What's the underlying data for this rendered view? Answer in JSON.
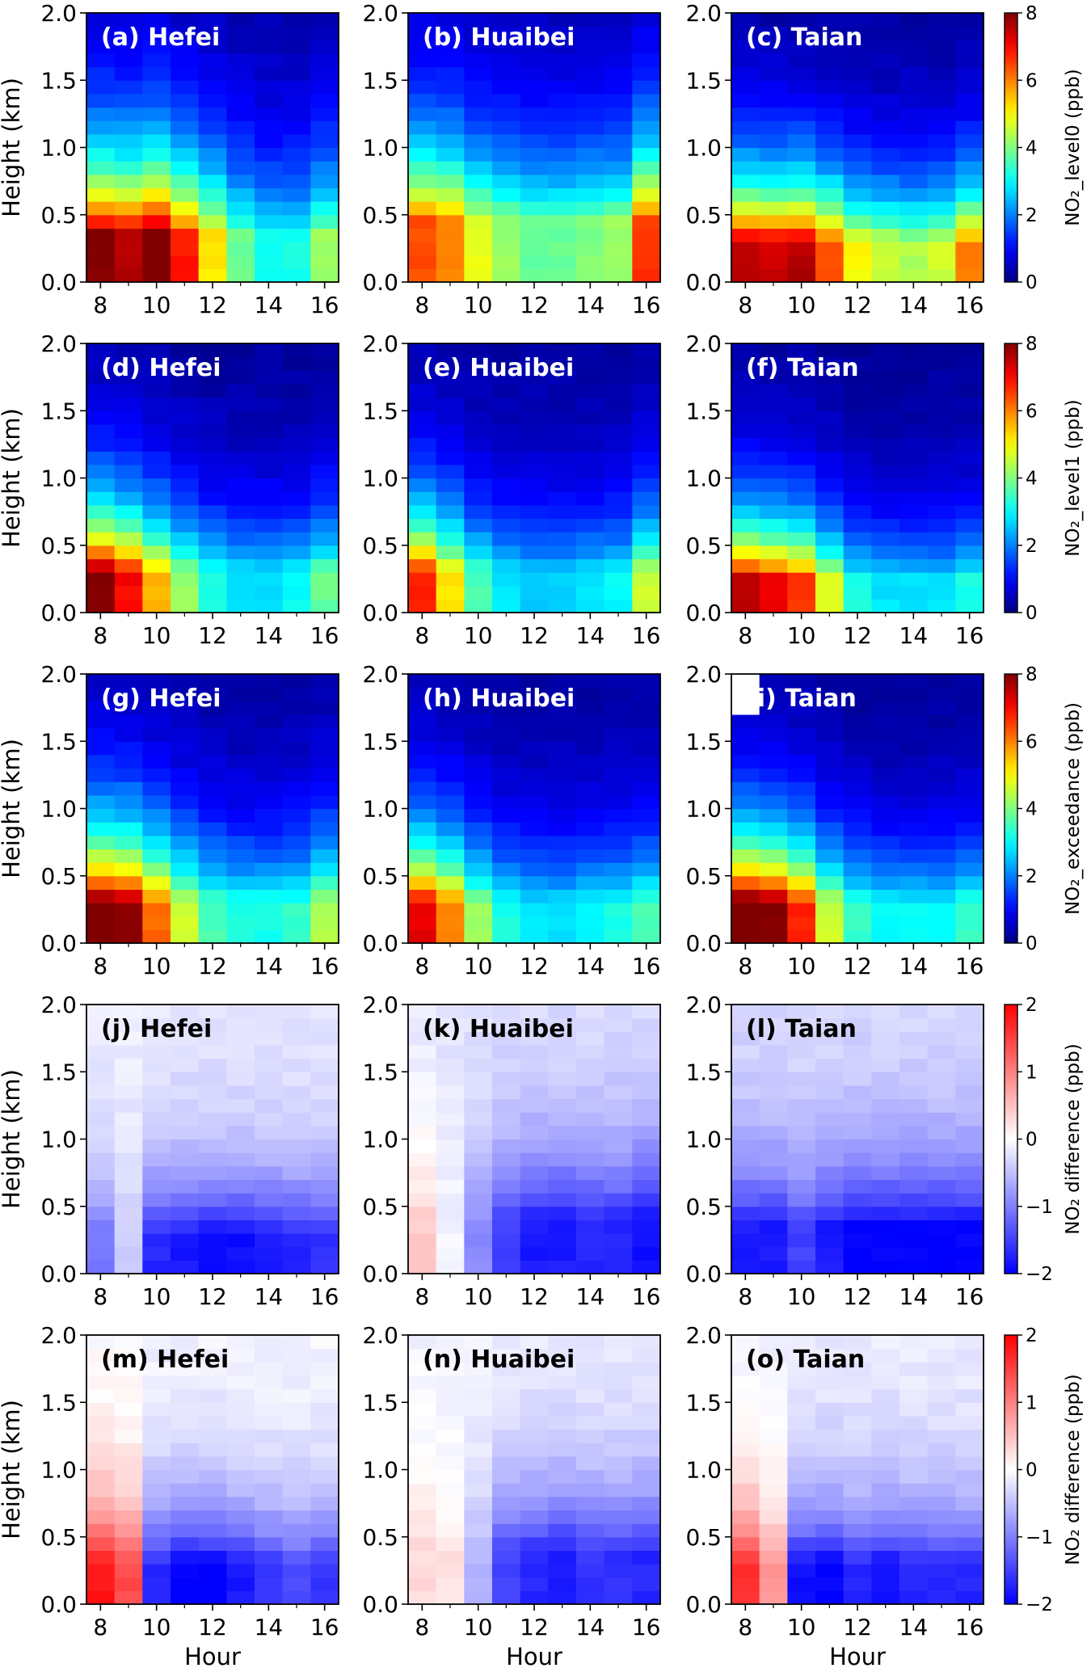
{
  "chart_data": {
    "type": "heatmap",
    "x": [
      8,
      9,
      10,
      11,
      12,
      13,
      14,
      15,
      16
    ],
    "y_bins": [
      0.05,
      0.15,
      0.25,
      0.35,
      0.45,
      0.55,
      0.65,
      0.75,
      0.85,
      0.95,
      1.05,
      1.15,
      1.25,
      1.35,
      1.45,
      1.55,
      1.65,
      1.75,
      1.85,
      1.95
    ],
    "xlabel": "Hour",
    "ylabel": "Height (km)",
    "xlim": [
      7.5,
      16.5
    ],
    "ylim": [
      0,
      2.0
    ],
    "x_ticks": [
      8,
      10,
      12,
      14,
      16
    ],
    "x_tick_labels": [
      "8",
      "10",
      "12",
      "14",
      "16"
    ],
    "y_ticks": [
      0,
      0.5,
      1.0,
      1.5,
      2.0
    ],
    "y_tick_labels": [
      "0.0",
      "0.5",
      "1.0",
      "1.5",
      "2.0"
    ],
    "rows": [
      {
        "colorbar": {
          "label": "NO₂_level0 (ppb)",
          "cmap": "jet",
          "vmin": 0,
          "vmax": 8,
          "ticks": [
            0,
            2,
            4,
            6,
            8
          ],
          "tick_labels": [
            "0",
            "2",
            "4",
            "6",
            "8"
          ]
        },
        "panels": [
          {
            "label": "(a) Hefei",
            "params": {
              "s": [
                8.0,
                7.6,
                8.2,
                6.8,
                5.2,
                3.8,
                3.2,
                3.2,
                4.2
              ],
              "h": 0.35,
              "k": 0.6,
              "f": 0.2,
              "n": 0.25
            }
          },
          {
            "label": "(b) Huaibei",
            "params": {
              "s": [
                6.4,
                6.0,
                4.8,
                4.2,
                3.8,
                3.8,
                4.0,
                4.2,
                6.6
              ],
              "h": 0.45,
              "k": 0.6,
              "f": 0.25,
              "n": 0.2
            }
          },
          {
            "label": "(c) Taian",
            "params": {
              "s": [
                7.6,
                7.4,
                7.6,
                6.4,
                5.0,
                4.6,
                4.4,
                4.6,
                6.0
              ],
              "h": 0.3,
              "k": 0.5,
              "f": 0.12,
              "n": 0.25
            }
          }
        ]
      },
      {
        "colorbar": {
          "label": "NO₂_level1 (ppb)",
          "cmap": "jet",
          "vmin": 0,
          "vmax": 8,
          "ticks": [
            0,
            2,
            4,
            6,
            8
          ],
          "tick_labels": [
            "0",
            "2",
            "4",
            "6",
            "8"
          ]
        },
        "panels": [
          {
            "label": "(d) Hefei",
            "params": {
              "s": [
                8.0,
                7.0,
                5.6,
                4.2,
                3.2,
                2.8,
                2.8,
                3.0,
                3.8
              ],
              "h": 0.3,
              "k": 0.5,
              "f": 0.15,
              "n": 0.25
            }
          },
          {
            "label": "(e) Huaibei",
            "params": {
              "s": [
                6.8,
                5.2,
                3.6,
                2.8,
                2.6,
                2.6,
                2.8,
                3.0,
                4.6
              ],
              "h": 0.3,
              "k": 0.5,
              "f": 0.2,
              "n": 0.2
            }
          },
          {
            "label": "(f) Taian",
            "params": {
              "s": [
                7.6,
                7.2,
                6.6,
                4.8,
                3.2,
                2.8,
                2.8,
                2.8,
                3.2
              ],
              "h": 0.25,
              "k": 0.45,
              "f": 0.15,
              "n": 0.2
            }
          }
        ]
      },
      {
        "colorbar": {
          "label": "NO₂_exceedance (ppb)",
          "cmap": "jet",
          "vmin": 0,
          "vmax": 8,
          "ticks": [
            0,
            2,
            4,
            6,
            8
          ],
          "tick_labels": [
            "0",
            "2",
            "4",
            "6",
            "8"
          ]
        },
        "panels": [
          {
            "label": "(g) Hefei",
            "params": {
              "s": [
                8.2,
                7.8,
                6.2,
                4.6,
                3.6,
                3.2,
                3.2,
                3.4,
                4.4
              ],
              "h": 0.3,
              "k": 0.55,
              "f": 0.15,
              "n": 0.25
            }
          },
          {
            "label": "(h) Huaibei",
            "params": {
              "s": [
                7.2,
                6.0,
                4.2,
                3.2,
                2.8,
                2.8,
                3.0,
                3.2,
                3.6
              ],
              "h": 0.3,
              "k": 0.5,
              "f": 0.2,
              "n": 0.2
            }
          },
          {
            "label": "(i) Taian",
            "params": {
              "s": [
                8.4,
                8.0,
                6.8,
                4.6,
                3.4,
                3.0,
                3.0,
                3.0,
                3.4
              ],
              "h": 0.3,
              "k": 0.5,
              "f": 0.12,
              "n": 0.2
            }
          }
        ]
      },
      {
        "colorbar": {
          "label": "NO₂ difference (ppb)",
          "cmap": "bwr",
          "vmin": -2,
          "vmax": 2,
          "ticks": [
            -2,
            -1,
            0,
            1,
            2
          ],
          "tick_labels": [
            "−2",
            "−1",
            "0",
            "1",
            "2"
          ]
        },
        "panels": [
          {
            "label": "(j) Hefei",
            "params": {
              "s": [
                -1.1,
                -0.4,
                -1.7,
                -1.8,
                -1.9,
                -1.9,
                -1.8,
                -1.7,
                -1.6
              ],
              "h": 0.3,
              "k": 0.45,
              "f": -0.15,
              "n": 0.15
            }
          },
          {
            "label": "(k) Huaibei",
            "params": {
              "s": [
                0.4,
                -0.1,
                -0.9,
                -1.5,
                -1.8,
                -1.8,
                -1.7,
                -1.7,
                -1.9
              ],
              "h": 0.4,
              "k": 0.55,
              "f": -0.2,
              "n": 0.15
            }
          },
          {
            "label": "(l) Taian",
            "params": {
              "s": [
                -1.8,
                -1.8,
                -1.5,
                -1.8,
                -2.0,
                -2.0,
                -2.0,
                -2.0,
                -2.0
              ],
              "h": 0.35,
              "k": 0.5,
              "f": -0.25,
              "n": 0.15
            }
          }
        ]
      },
      {
        "colorbar": {
          "label": "NO₂ difference (ppb)",
          "cmap": "bwr",
          "vmin": -2,
          "vmax": 2,
          "ticks": [
            -2,
            -1,
            0,
            1,
            2
          ],
          "tick_labels": [
            "−2",
            "−1",
            "0",
            "1",
            "2"
          ]
        },
        "panels": [
          {
            "label": "(m) Hefei",
            "params": {
              "s": [
                1.8,
                1.4,
                -1.7,
                -2.0,
                -2.0,
                -1.8,
                -1.6,
                -1.4,
                -1.6
              ],
              "h": 0.3,
              "k": 0.45,
              "f": -0.05,
              "n": 0.15
            }
          },
          {
            "label": "(n) Huaibei",
            "params": {
              "s": [
                0.3,
                0.2,
                -0.6,
                -1.5,
                -1.7,
                -1.8,
                -1.6,
                -1.6,
                -1.7
              ],
              "h": 0.4,
              "k": 0.5,
              "f": -0.1,
              "n": 0.15
            }
          },
          {
            "label": "(o) Taian",
            "params": {
              "s": [
                1.6,
                0.8,
                -1.9,
                -2.0,
                -1.7,
                -1.9,
                -1.7,
                -1.7,
                -1.7
              ],
              "h": 0.3,
              "k": 0.45,
              "f": -0.12,
              "n": 0.15
            }
          }
        ]
      }
    ]
  }
}
